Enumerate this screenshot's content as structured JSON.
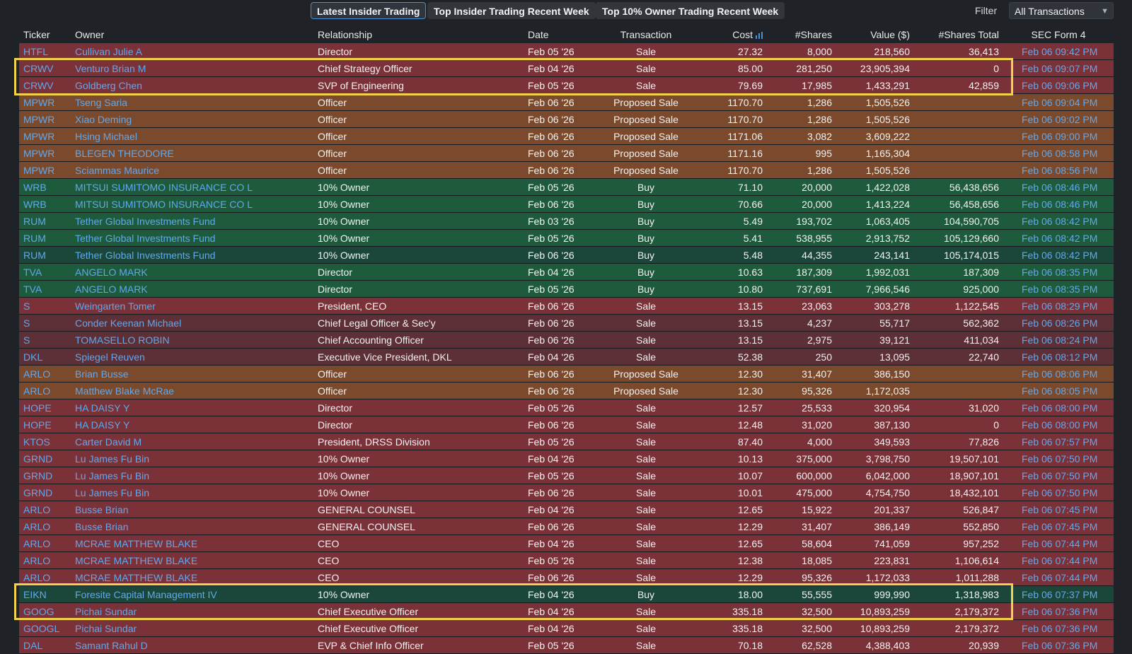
{
  "tabs": [
    {
      "label": "Latest Insider Trading",
      "active": true
    },
    {
      "label": "Top Insider Trading Recent Week",
      "active": false
    },
    {
      "label": "Top 10% Owner Trading Recent Week",
      "active": false
    }
  ],
  "filter": {
    "label": "Filter",
    "value": "All Transactions"
  },
  "columns": [
    "Ticker",
    "Owner",
    "Relationship",
    "Date",
    "Transaction",
    "Cost",
    "#Shares",
    "Value ($)",
    "#Shares Total",
    "SEC Form 4"
  ],
  "colors": {
    "sale": "#7b3138",
    "proposed": "#7b4a2c",
    "buy": "#1e5a3c",
    "link": "#5ea9f0",
    "highlight": "#f2d14b"
  },
  "rows": [
    {
      "ticker": "HTFL",
      "owner": "Cullivan Julie A",
      "relationship": "Director",
      "date": "Feb 05 '26",
      "transaction": "Sale",
      "cost": "27.32",
      "shares": "8,000",
      "value": "218,560",
      "total": "36,413",
      "form": "Feb 06 09:42 PM"
    },
    {
      "ticker": "CRWV",
      "owner": "Venturo Brian M",
      "relationship": "Chief Strategy Officer",
      "date": "Feb 04 '26",
      "transaction": "Sale",
      "cost": "85.00",
      "shares": "281,250",
      "value": "23,905,394",
      "total": "0",
      "form": "Feb 06 09:07 PM"
    },
    {
      "ticker": "CRWV",
      "owner": "Goldberg Chen",
      "relationship": "SVP of Engineering",
      "date": "Feb 05 '26",
      "transaction": "Sale",
      "cost": "79.69",
      "shares": "17,985",
      "value": "1,433,291",
      "total": "42,859",
      "form": "Feb 06 09:06 PM"
    },
    {
      "ticker": "MPWR",
      "owner": "Tseng Saria",
      "relationship": "Officer",
      "date": "Feb 06 '26",
      "transaction": "Proposed Sale",
      "cost": "1170.70",
      "shares": "1,286",
      "value": "1,505,526",
      "total": "",
      "form": "Feb 06 09:04 PM"
    },
    {
      "ticker": "MPWR",
      "owner": "Xiao Deming",
      "relationship": "Officer",
      "date": "Feb 06 '26",
      "transaction": "Proposed Sale",
      "cost": "1170.70",
      "shares": "1,286",
      "value": "1,505,526",
      "total": "",
      "form": "Feb 06 09:02 PM"
    },
    {
      "ticker": "MPWR",
      "owner": "Hsing Michael",
      "relationship": "Officer",
      "date": "Feb 06 '26",
      "transaction": "Proposed Sale",
      "cost": "1171.06",
      "shares": "3,082",
      "value": "3,609,222",
      "total": "",
      "form": "Feb 06 09:00 PM"
    },
    {
      "ticker": "MPWR",
      "owner": "BLEGEN THEODORE",
      "relationship": "Officer",
      "date": "Feb 06 '26",
      "transaction": "Proposed Sale",
      "cost": "1171.16",
      "shares": "995",
      "value": "1,165,304",
      "total": "",
      "form": "Feb 06 08:58 PM"
    },
    {
      "ticker": "MPWR",
      "owner": "Sciammas Maurice",
      "relationship": "Officer",
      "date": "Feb 06 '26",
      "transaction": "Proposed Sale",
      "cost": "1170.70",
      "shares": "1,286",
      "value": "1,505,526",
      "total": "",
      "form": "Feb 06 08:56 PM"
    },
    {
      "ticker": "WRB",
      "owner": "MITSUI SUMITOMO INSURANCE CO L",
      "relationship": "10% Owner",
      "date": "Feb 05 '26",
      "transaction": "Buy",
      "cost": "71.10",
      "shares": "20,000",
      "value": "1,422,028",
      "total": "56,438,656",
      "form": "Feb 06 08:46 PM"
    },
    {
      "ticker": "WRB",
      "owner": "MITSUI SUMITOMO INSURANCE CO L",
      "relationship": "10% Owner",
      "date": "Feb 06 '26",
      "transaction": "Buy",
      "cost": "70.66",
      "shares": "20,000",
      "value": "1,413,224",
      "total": "56,458,656",
      "form": "Feb 06 08:46 PM"
    },
    {
      "ticker": "RUM",
      "owner": "Tether Global Investments Fund",
      "relationship": "10% Owner",
      "date": "Feb 03 '26",
      "transaction": "Buy",
      "cost": "5.49",
      "shares": "193,702",
      "value": "1,063,405",
      "total": "104,590,705",
      "form": "Feb 06 08:42 PM"
    },
    {
      "ticker": "RUM",
      "owner": "Tether Global Investments Fund",
      "relationship": "10% Owner",
      "date": "Feb 05 '26",
      "transaction": "Buy",
      "cost": "5.41",
      "shares": "538,955",
      "value": "2,913,752",
      "total": "105,129,660",
      "form": "Feb 06 08:42 PM"
    },
    {
      "ticker": "RUM",
      "owner": "Tether Global Investments Fund",
      "relationship": "10% Owner",
      "date": "Feb 06 '26",
      "transaction": "Buy",
      "cost": "5.48",
      "shares": "44,355",
      "value": "243,141",
      "total": "105,174,015",
      "form": "Feb 06 08:42 PM",
      "dark": true
    },
    {
      "ticker": "TVA",
      "owner": "ANGELO MARK",
      "relationship": "Director",
      "date": "Feb 04 '26",
      "transaction": "Buy",
      "cost": "10.63",
      "shares": "187,309",
      "value": "1,992,031",
      "total": "187,309",
      "form": "Feb 06 08:35 PM"
    },
    {
      "ticker": "TVA",
      "owner": "ANGELO MARK",
      "relationship": "Director",
      "date": "Feb 05 '26",
      "transaction": "Buy",
      "cost": "10.80",
      "shares": "737,691",
      "value": "7,966,546",
      "total": "925,000",
      "form": "Feb 06 08:35 PM"
    },
    {
      "ticker": "S",
      "owner": "Weingarten Tomer",
      "relationship": "President, CEO",
      "date": "Feb 06 '26",
      "transaction": "Sale",
      "cost": "13.15",
      "shares": "23,063",
      "value": "303,278",
      "total": "1,122,545",
      "form": "Feb 06 08:29 PM"
    },
    {
      "ticker": "S",
      "owner": "Conder Keenan Michael",
      "relationship": "Chief Legal Officer & Sec'y",
      "date": "Feb 06 '26",
      "transaction": "Sale",
      "cost": "13.15",
      "shares": "4,237",
      "value": "55,717",
      "total": "562,362",
      "form": "Feb 06 08:26 PM",
      "dark": true
    },
    {
      "ticker": "S",
      "owner": "TOMASELLO ROBIN",
      "relationship": "Chief Accounting Officer",
      "date": "Feb 06 '26",
      "transaction": "Sale",
      "cost": "13.15",
      "shares": "2,975",
      "value": "39,121",
      "total": "411,034",
      "form": "Feb 06 08:24 PM",
      "dark": true
    },
    {
      "ticker": "DKL",
      "owner": "Spiegel Reuven",
      "relationship": "Executive Vice President, DKL",
      "date": "Feb 04 '26",
      "transaction": "Sale",
      "cost": "52.38",
      "shares": "250",
      "value": "13,095",
      "total": "22,740",
      "form": "Feb 06 08:12 PM",
      "dark": true
    },
    {
      "ticker": "ARLO",
      "owner": "Brian Busse",
      "relationship": "Officer",
      "date": "Feb 06 '26",
      "transaction": "Proposed Sale",
      "cost": "12.30",
      "shares": "31,407",
      "value": "386,150",
      "total": "",
      "form": "Feb 06 08:06 PM"
    },
    {
      "ticker": "ARLO",
      "owner": "Matthew Blake McRae",
      "relationship": "Officer",
      "date": "Feb 06 '26",
      "transaction": "Proposed Sale",
      "cost": "12.30",
      "shares": "95,326",
      "value": "1,172,035",
      "total": "",
      "form": "Feb 06 08:05 PM"
    },
    {
      "ticker": "HOPE",
      "owner": "HA DAISY Y",
      "relationship": "Director",
      "date": "Feb 05 '26",
      "transaction": "Sale",
      "cost": "12.57",
      "shares": "25,533",
      "value": "320,954",
      "total": "31,020",
      "form": "Feb 06 08:00 PM"
    },
    {
      "ticker": "HOPE",
      "owner": "HA DAISY Y",
      "relationship": "Director",
      "date": "Feb 06 '26",
      "transaction": "Sale",
      "cost": "12.48",
      "shares": "31,020",
      "value": "387,130",
      "total": "0",
      "form": "Feb 06 08:00 PM"
    },
    {
      "ticker": "KTOS",
      "owner": "Carter David M",
      "relationship": "President, DRSS Division",
      "date": "Feb 05 '26",
      "transaction": "Sale",
      "cost": "87.40",
      "shares": "4,000",
      "value": "349,593",
      "total": "77,826",
      "form": "Feb 06 07:57 PM"
    },
    {
      "ticker": "GRND",
      "owner": "Lu James Fu Bin",
      "relationship": "10% Owner",
      "date": "Feb 04 '26",
      "transaction": "Sale",
      "cost": "10.13",
      "shares": "375,000",
      "value": "3,798,750",
      "total": "19,507,101",
      "form": "Feb 06 07:50 PM"
    },
    {
      "ticker": "GRND",
      "owner": "Lu James Fu Bin",
      "relationship": "10% Owner",
      "date": "Feb 05 '26",
      "transaction": "Sale",
      "cost": "10.07",
      "shares": "600,000",
      "value": "6,042,000",
      "total": "18,907,101",
      "form": "Feb 06 07:50 PM"
    },
    {
      "ticker": "GRND",
      "owner": "Lu James Fu Bin",
      "relationship": "10% Owner",
      "date": "Feb 06 '26",
      "transaction": "Sale",
      "cost": "10.01",
      "shares": "475,000",
      "value": "4,754,750",
      "total": "18,432,101",
      "form": "Feb 06 07:50 PM"
    },
    {
      "ticker": "ARLO",
      "owner": "Busse Brian",
      "relationship": "GENERAL COUNSEL",
      "date": "Feb 04 '26",
      "transaction": "Sale",
      "cost": "12.65",
      "shares": "15,922",
      "value": "201,337",
      "total": "526,847",
      "form": "Feb 06 07:45 PM"
    },
    {
      "ticker": "ARLO",
      "owner": "Busse Brian",
      "relationship": "GENERAL COUNSEL",
      "date": "Feb 06 '26",
      "transaction": "Sale",
      "cost": "12.29",
      "shares": "31,407",
      "value": "386,149",
      "total": "552,850",
      "form": "Feb 06 07:45 PM"
    },
    {
      "ticker": "ARLO",
      "owner": "MCRAE MATTHEW BLAKE",
      "relationship": "CEO",
      "date": "Feb 04 '26",
      "transaction": "Sale",
      "cost": "12.65",
      "shares": "58,604",
      "value": "741,059",
      "total": "957,252",
      "form": "Feb 06 07:44 PM"
    },
    {
      "ticker": "ARLO",
      "owner": "MCRAE MATTHEW BLAKE",
      "relationship": "CEO",
      "date": "Feb 05 '26",
      "transaction": "Sale",
      "cost": "12.38",
      "shares": "18,085",
      "value": "223,831",
      "total": "1,106,614",
      "form": "Feb 06 07:44 PM"
    },
    {
      "ticker": "ARLO",
      "owner": "MCRAE MATTHEW BLAKE",
      "relationship": "CEO",
      "date": "Feb 06 '26",
      "transaction": "Sale",
      "cost": "12.29",
      "shares": "95,326",
      "value": "1,172,033",
      "total": "1,011,288",
      "form": "Feb 06 07:44 PM"
    },
    {
      "ticker": "EIKN",
      "owner": "Foresite Capital Management IV",
      "relationship": "10% Owner",
      "date": "Feb 04 '26",
      "transaction": "Buy",
      "cost": "18.00",
      "shares": "55,555",
      "value": "999,990",
      "total": "1,318,983",
      "form": "Feb 06 07:37 PM",
      "dark": true
    },
    {
      "ticker": "GOOG",
      "owner": "Pichai Sundar",
      "relationship": "Chief Executive Officer",
      "date": "Feb 04 '26",
      "transaction": "Sale",
      "cost": "335.18",
      "shares": "32,500",
      "value": "10,893,259",
      "total": "2,179,372",
      "form": "Feb 06 07:36 PM"
    },
    {
      "ticker": "GOOGL",
      "owner": "Pichai Sundar",
      "relationship": "Chief Executive Officer",
      "date": "Feb 04 '26",
      "transaction": "Sale",
      "cost": "335.18",
      "shares": "32,500",
      "value": "10,893,259",
      "total": "2,179,372",
      "form": "Feb 06 07:36 PM"
    },
    {
      "ticker": "DAL",
      "owner": "Samant Rahul D",
      "relationship": "EVP & Chief Info Officer",
      "date": "Feb 05 '26",
      "transaction": "Sale",
      "cost": "70.18",
      "shares": "62,528",
      "value": "4,388,403",
      "total": "20,939",
      "form": "Feb 06 07:36 PM"
    }
  ]
}
